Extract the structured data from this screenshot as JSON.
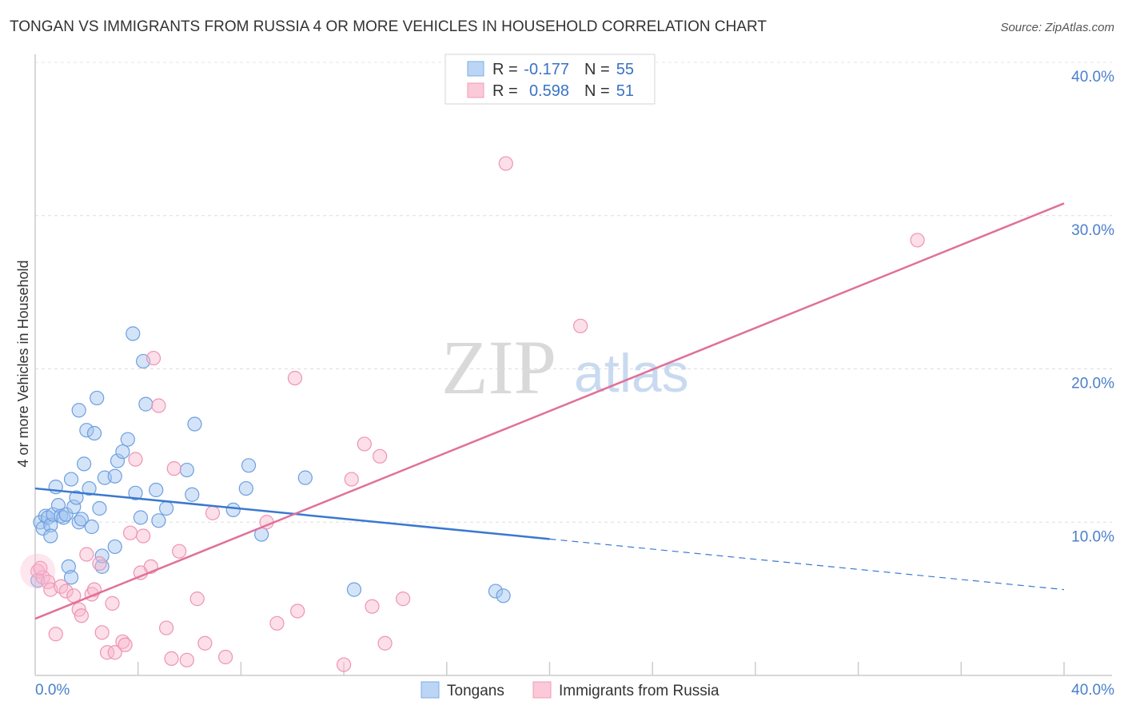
{
  "chart_data": {
    "type": "scatter",
    "title": "TONGAN VS IMMIGRANTS FROM RUSSIA 4 OR MORE VEHICLES IN HOUSEHOLD CORRELATION CHART",
    "source": "Source: ZipAtlas.com",
    "ylabel": "4 or more Vehicles in Household",
    "xlim": [
      0,
      40
    ],
    "ylim": [
      0,
      40
    ],
    "x_tick_labels": [
      "0.0%",
      "40.0%"
    ],
    "y_ticks": [
      10,
      20,
      30,
      40
    ],
    "y_tick_labels": [
      "10.0%",
      "20.0%",
      "30.0%",
      "40.0%"
    ],
    "watermark": {
      "zip": "ZIP",
      "atlas": "atlas"
    },
    "legend": {
      "r_label": "R =",
      "n_label": "N =",
      "entries": [
        {
          "r": "-0.177",
          "n": "55"
        },
        {
          "r": "0.598",
          "n": "51"
        }
      ]
    },
    "series": [
      {
        "name": "Tongans",
        "color": "#7aaee8",
        "line_color": "#3a78d0",
        "trend": {
          "x0": 0,
          "y0": 12.2,
          "x1": 20,
          "y1": 8.9,
          "dash_x1": 40,
          "dash_y1": 5.6
        },
        "points": [
          [
            0.2,
            10.0
          ],
          [
            0.3,
            9.6
          ],
          [
            0.4,
            10.4
          ],
          [
            0.5,
            10.3
          ],
          [
            0.6,
            9.8
          ],
          [
            0.6,
            9.1
          ],
          [
            0.7,
            10.5
          ],
          [
            0.8,
            12.3
          ],
          [
            0.9,
            11.1
          ],
          [
            1.0,
            10.4
          ],
          [
            1.1,
            10.3
          ],
          [
            1.2,
            10.5
          ],
          [
            1.3,
            7.1
          ],
          [
            1.4,
            6.4
          ],
          [
            1.4,
            12.8
          ],
          [
            1.5,
            11.0
          ],
          [
            1.6,
            11.6
          ],
          [
            1.7,
            10.0
          ],
          [
            1.7,
            17.3
          ],
          [
            1.8,
            10.2
          ],
          [
            1.9,
            13.8
          ],
          [
            2.0,
            16.0
          ],
          [
            2.1,
            12.2
          ],
          [
            2.2,
            9.7
          ],
          [
            2.3,
            15.8
          ],
          [
            2.4,
            18.1
          ],
          [
            2.5,
            10.9
          ],
          [
            2.6,
            7.1
          ],
          [
            2.6,
            7.8
          ],
          [
            2.7,
            12.9
          ],
          [
            3.1,
            13.0
          ],
          [
            3.1,
            8.4
          ],
          [
            3.2,
            14.0
          ],
          [
            3.4,
            14.6
          ],
          [
            3.6,
            15.4
          ],
          [
            3.8,
            22.3
          ],
          [
            3.9,
            11.9
          ],
          [
            4.1,
            10.3
          ],
          [
            4.2,
            20.5
          ],
          [
            4.3,
            17.7
          ],
          [
            4.7,
            12.1
          ],
          [
            4.8,
            10.1
          ],
          [
            5.1,
            10.9
          ],
          [
            5.9,
            13.4
          ],
          [
            6.1,
            11.8
          ],
          [
            6.2,
            16.4
          ],
          [
            7.7,
            10.8
          ],
          [
            8.2,
            12.2
          ],
          [
            8.3,
            13.7
          ],
          [
            8.8,
            9.2
          ],
          [
            10.5,
            12.9
          ],
          [
            12.4,
            5.6
          ],
          [
            17.9,
            5.5
          ],
          [
            18.2,
            5.2
          ],
          [
            0.1,
            6.2
          ]
        ]
      },
      {
        "name": "Immigrants from Russia",
        "color": "#f29cb8",
        "line_color": "#e07099",
        "trend": {
          "x0": 0,
          "y0": 3.7,
          "x1": 40,
          "y1": 30.8
        },
        "points": [
          [
            0.1,
            6.8
          ],
          [
            0.3,
            6.4
          ],
          [
            0.5,
            6.1
          ],
          [
            0.6,
            5.6
          ],
          [
            0.8,
            2.7
          ],
          [
            1.0,
            5.8
          ],
          [
            1.2,
            5.5
          ],
          [
            1.5,
            5.2
          ],
          [
            1.7,
            4.3
          ],
          [
            1.8,
            3.9
          ],
          [
            2.0,
            7.9
          ],
          [
            2.2,
            5.3
          ],
          [
            2.3,
            5.6
          ],
          [
            2.5,
            7.3
          ],
          [
            2.6,
            2.8
          ],
          [
            2.8,
            1.5
          ],
          [
            3.0,
            4.7
          ],
          [
            3.1,
            1.5
          ],
          [
            3.4,
            2.2
          ],
          [
            3.5,
            2.0
          ],
          [
            3.7,
            9.3
          ],
          [
            3.9,
            14.1
          ],
          [
            4.1,
            6.7
          ],
          [
            4.2,
            9.1
          ],
          [
            4.5,
            7.1
          ],
          [
            4.6,
            20.7
          ],
          [
            4.8,
            17.6
          ],
          [
            5.1,
            3.1
          ],
          [
            5.3,
            1.1
          ],
          [
            5.4,
            13.5
          ],
          [
            5.6,
            8.1
          ],
          [
            5.9,
            1.0
          ],
          [
            6.3,
            5.0
          ],
          [
            6.6,
            2.1
          ],
          [
            6.9,
            10.6
          ],
          [
            7.4,
            1.2
          ],
          [
            9.0,
            10.0
          ],
          [
            9.4,
            3.4
          ],
          [
            10.1,
            19.4
          ],
          [
            10.2,
            4.2
          ],
          [
            12.0,
            0.7
          ],
          [
            12.3,
            12.8
          ],
          [
            12.8,
            15.1
          ],
          [
            13.1,
            4.5
          ],
          [
            13.4,
            14.3
          ],
          [
            13.6,
            2.1
          ],
          [
            14.3,
            5.0
          ],
          [
            18.3,
            33.4
          ],
          [
            21.2,
            22.8
          ],
          [
            34.3,
            28.4
          ],
          [
            0.2,
            7.0
          ]
        ]
      }
    ]
  }
}
